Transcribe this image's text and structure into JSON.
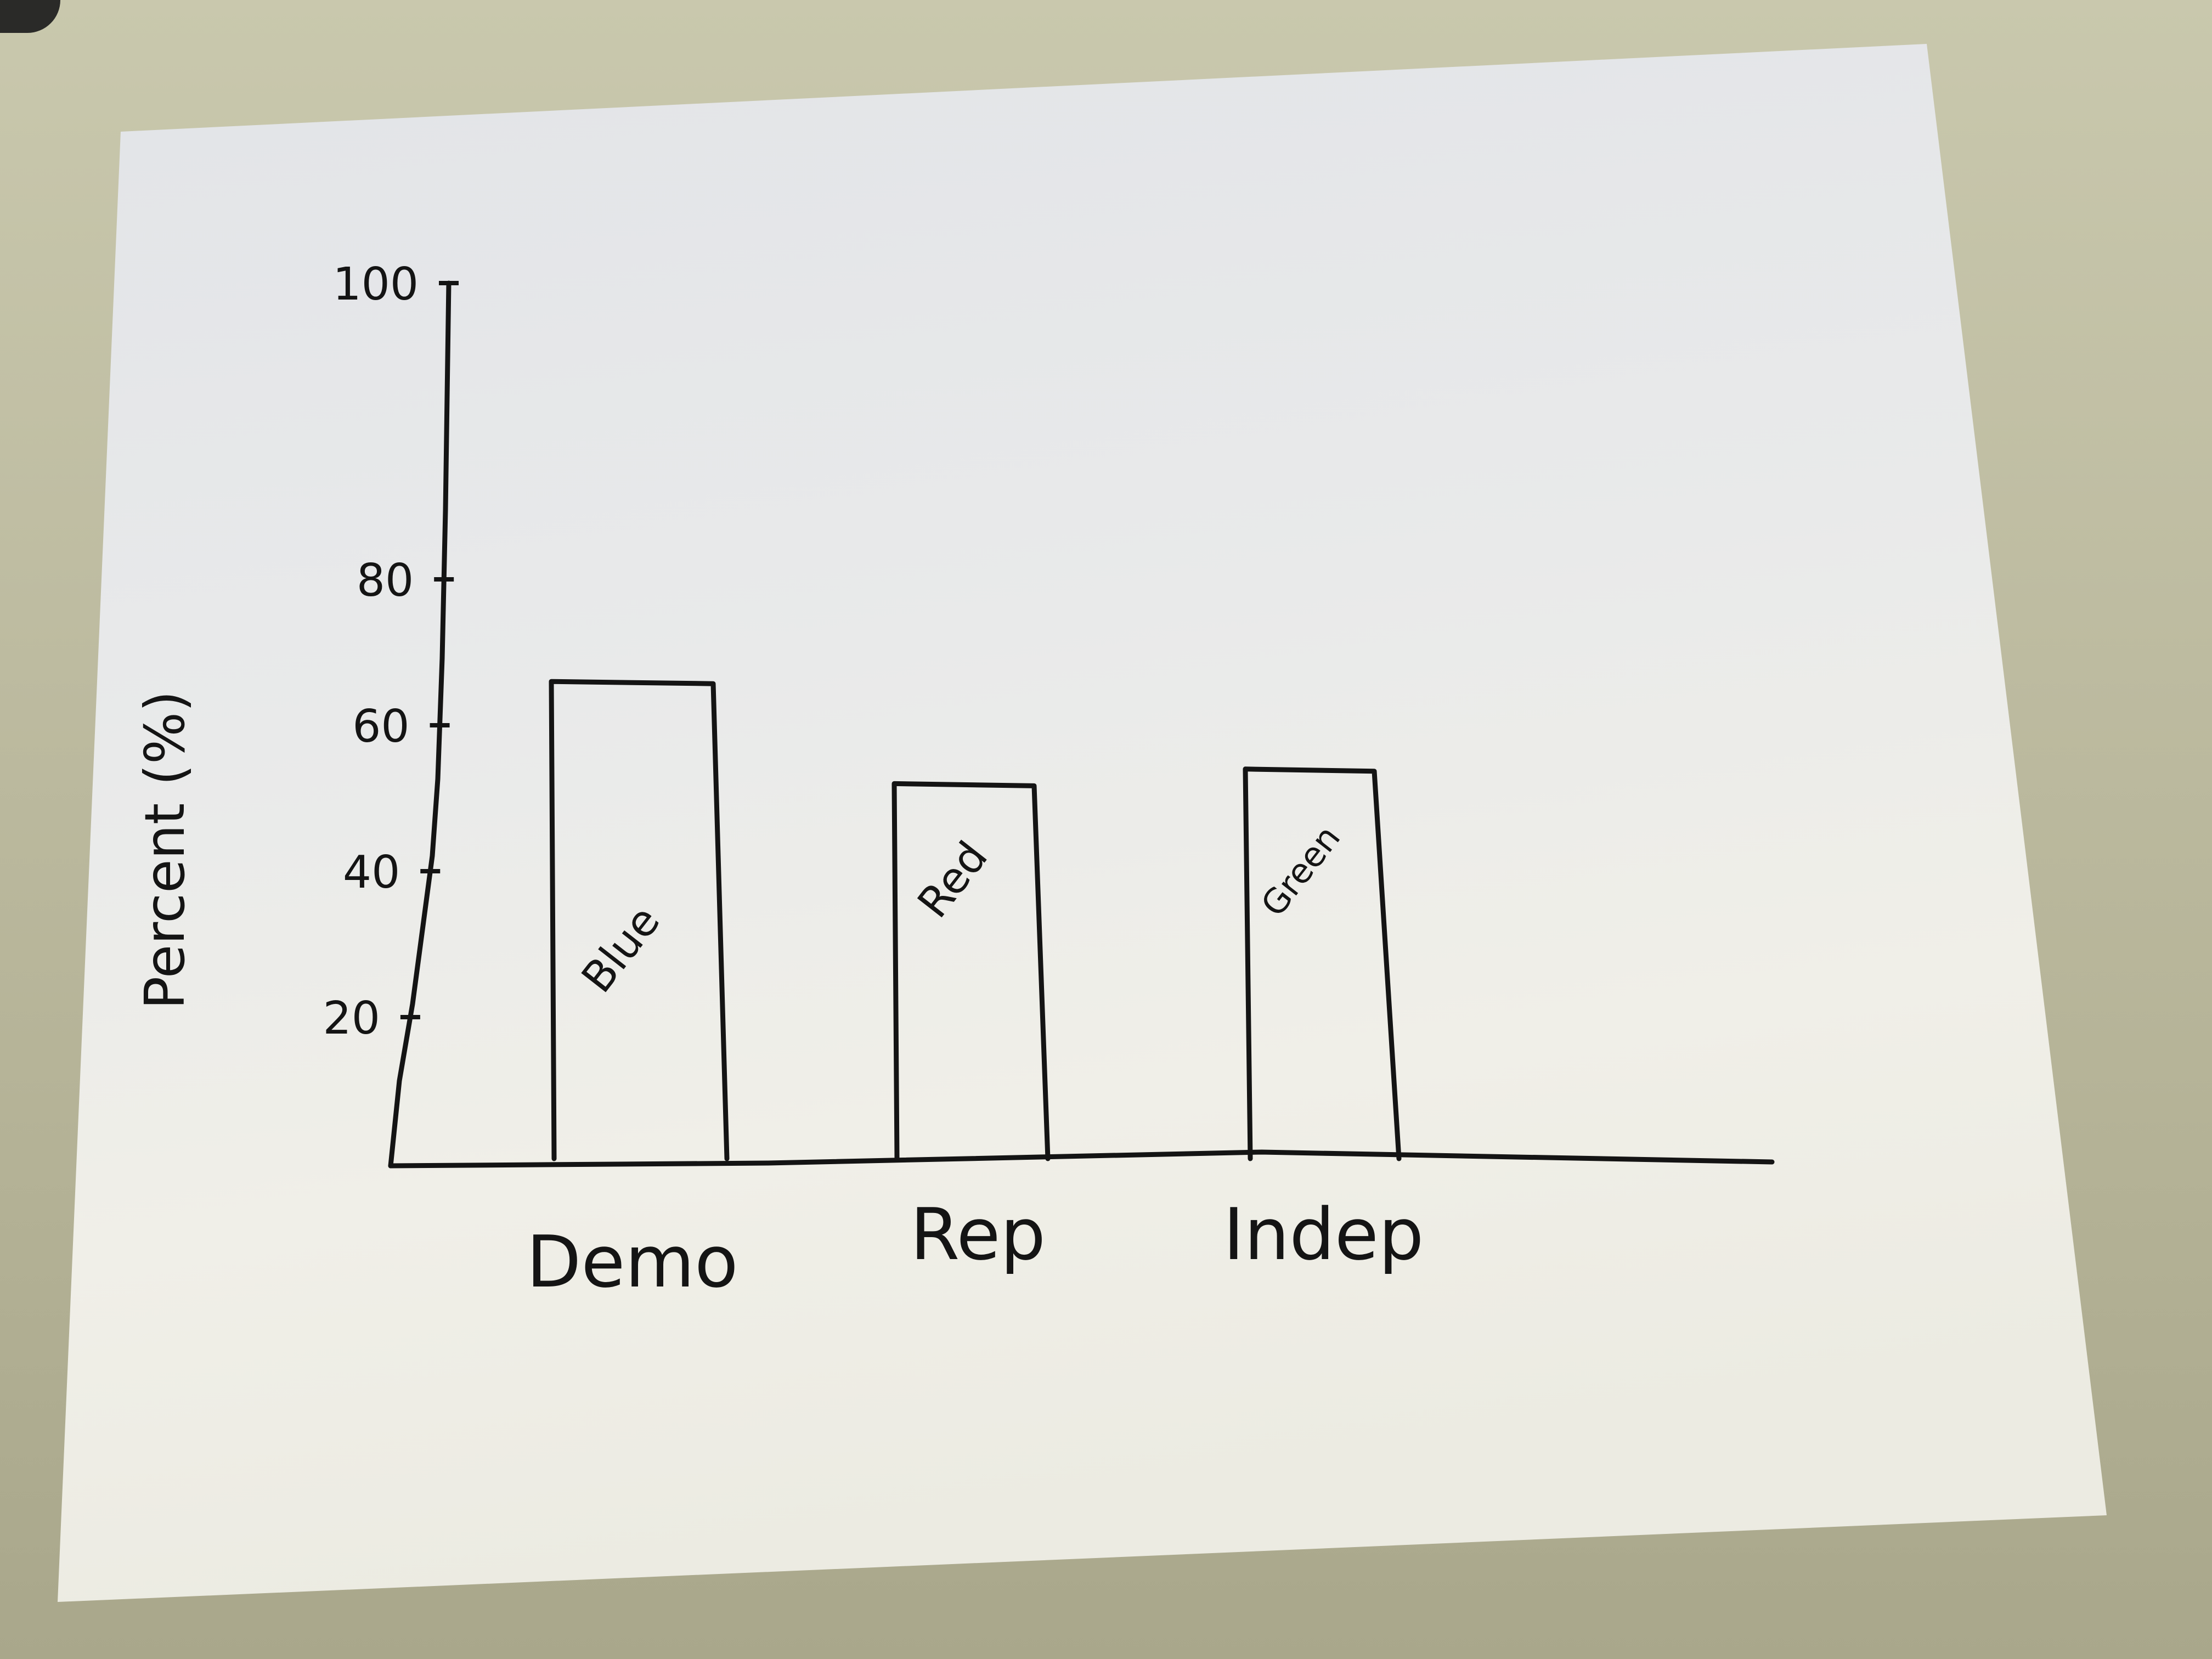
{
  "chart_data": {
    "type": "bar",
    "categories": [
      "Demo",
      "Rep",
      "Indep"
    ],
    "values": [
      66,
      52,
      54
    ],
    "bar_labels": [
      "Blue",
      "Red",
      "Green"
    ],
    "title": "",
    "xlabel": "",
    "ylabel": "Percent (%)",
    "ylim": [
      0,
      100
    ],
    "yticks": [
      20,
      40,
      60,
      80,
      100
    ],
    "grid": false,
    "legend": "none"
  }
}
